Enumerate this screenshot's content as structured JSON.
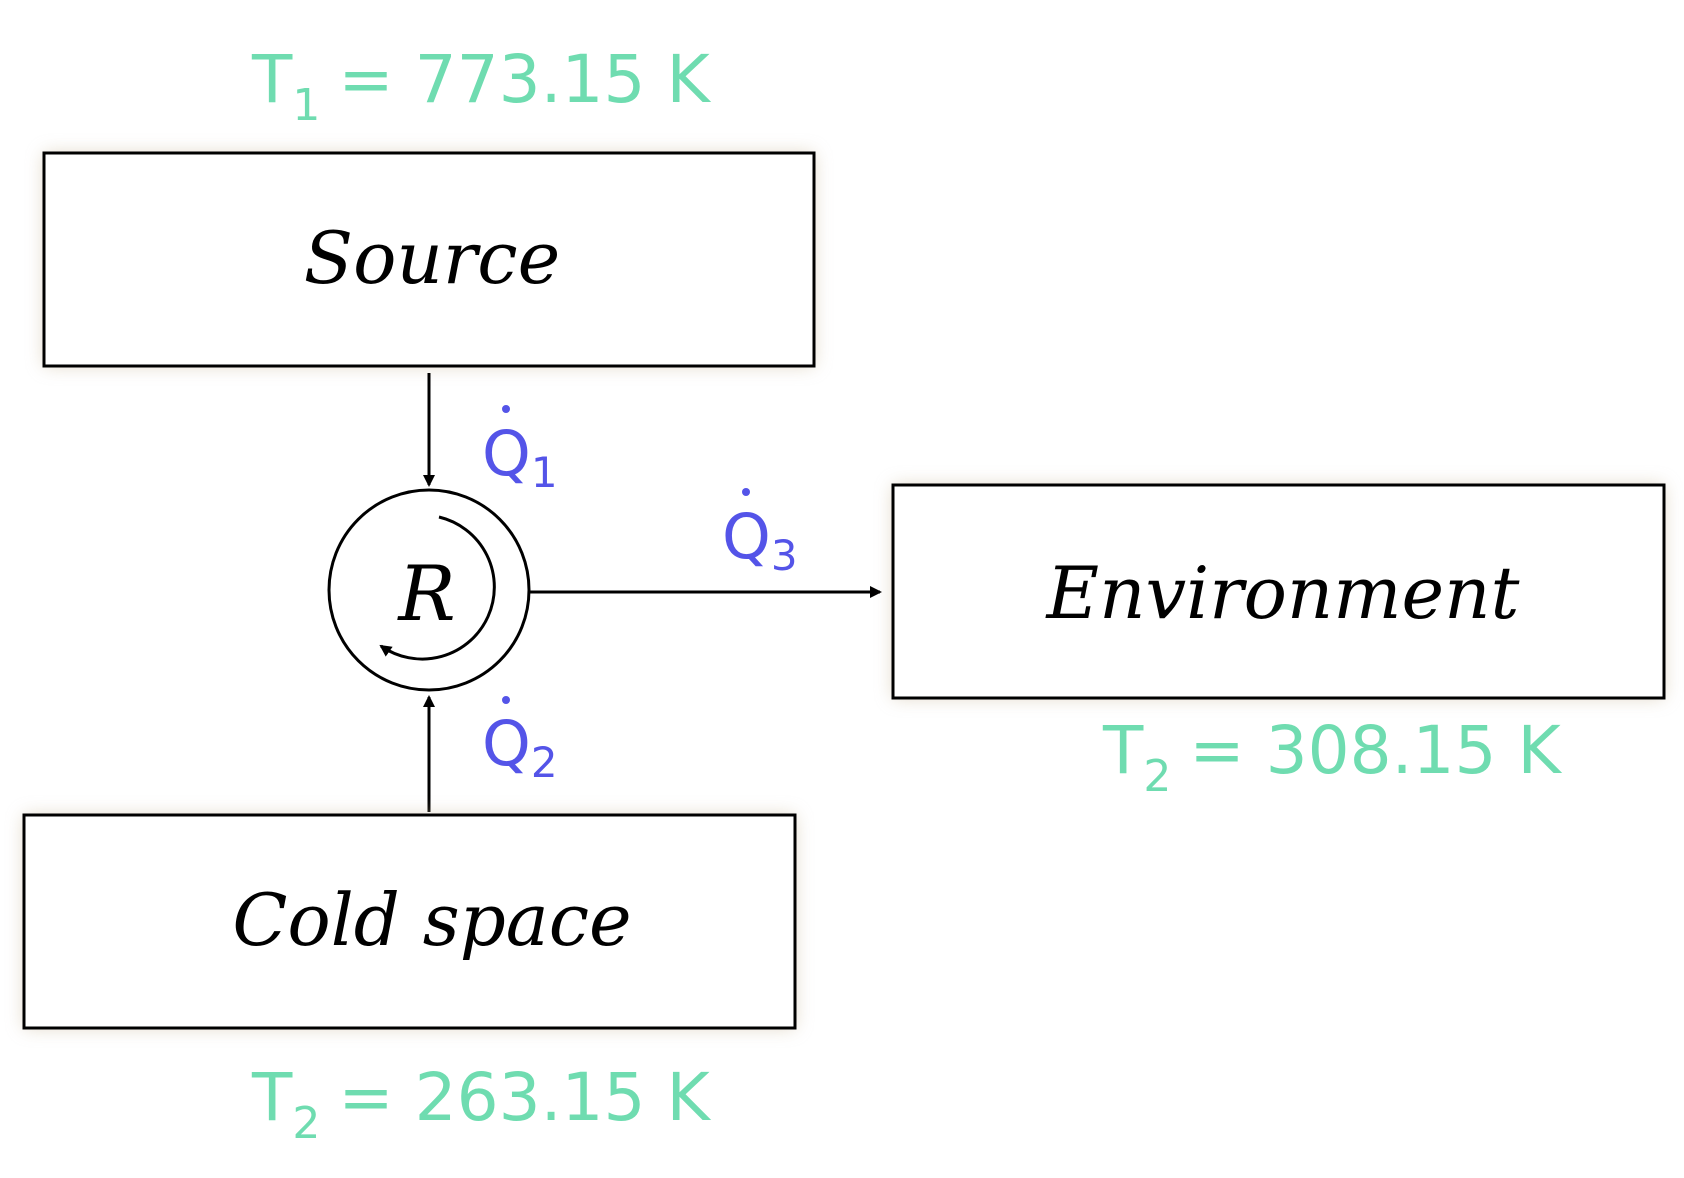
{
  "source": {
    "label": "Source",
    "temp": {
      "symbol": "T",
      "sub": "1",
      "value": "= 773.15 K"
    }
  },
  "environment": {
    "label": "Environment",
    "temp": {
      "symbol": "T",
      "sub": "2",
      "value": "= 308.15 K"
    }
  },
  "cold_space": {
    "label": "Cold space",
    "temp": {
      "symbol": "T",
      "sub": "2",
      "value": "= 263.15 K"
    }
  },
  "machine": {
    "label": "R"
  },
  "heat_flows": {
    "q1": {
      "symbol": "Q",
      "sub": "1"
    },
    "q2": {
      "symbol": "Q",
      "sub": "2"
    },
    "q3": {
      "symbol": "Q",
      "sub": "3"
    }
  },
  "colors": {
    "temperature": "#6fdcb0",
    "heat_flow": "#5454e8",
    "box_glow": "#c9b79a"
  }
}
